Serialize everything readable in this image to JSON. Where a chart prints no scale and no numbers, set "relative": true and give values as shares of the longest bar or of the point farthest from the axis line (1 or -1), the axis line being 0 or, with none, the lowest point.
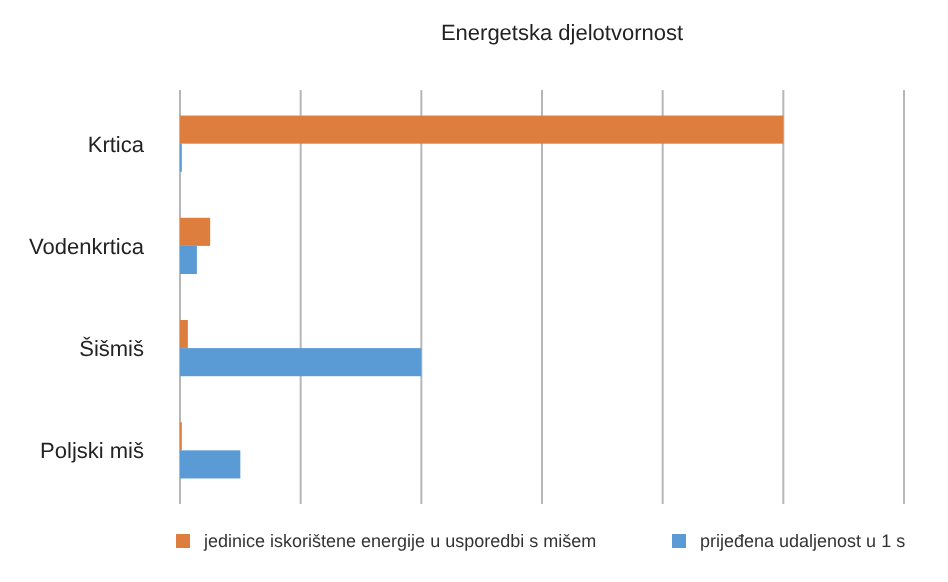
{
  "chart_data": {
    "type": "bar",
    "orientation": "horizontal",
    "relative": true,
    "title": "Energetska djelotvornost",
    "categories": [
      "Krtica",
      "Vodenkrtica",
      "Šišmiš",
      "Poljski miš"
    ],
    "series": [
      {
        "name": "jedinice iskorištene energije u usporedbi s mišem",
        "color": "#dd7e3e",
        "values": [
          1,
          0.05,
          0.013,
          0.003
        ]
      },
      {
        "name": "prijeđena udaljenost u 1 s",
        "color": "#5b9bd5",
        "values": [
          0.003,
          0.028,
          0.4,
          0.1
        ]
      }
    ],
    "grid": "x",
    "legend": "bottom"
  }
}
